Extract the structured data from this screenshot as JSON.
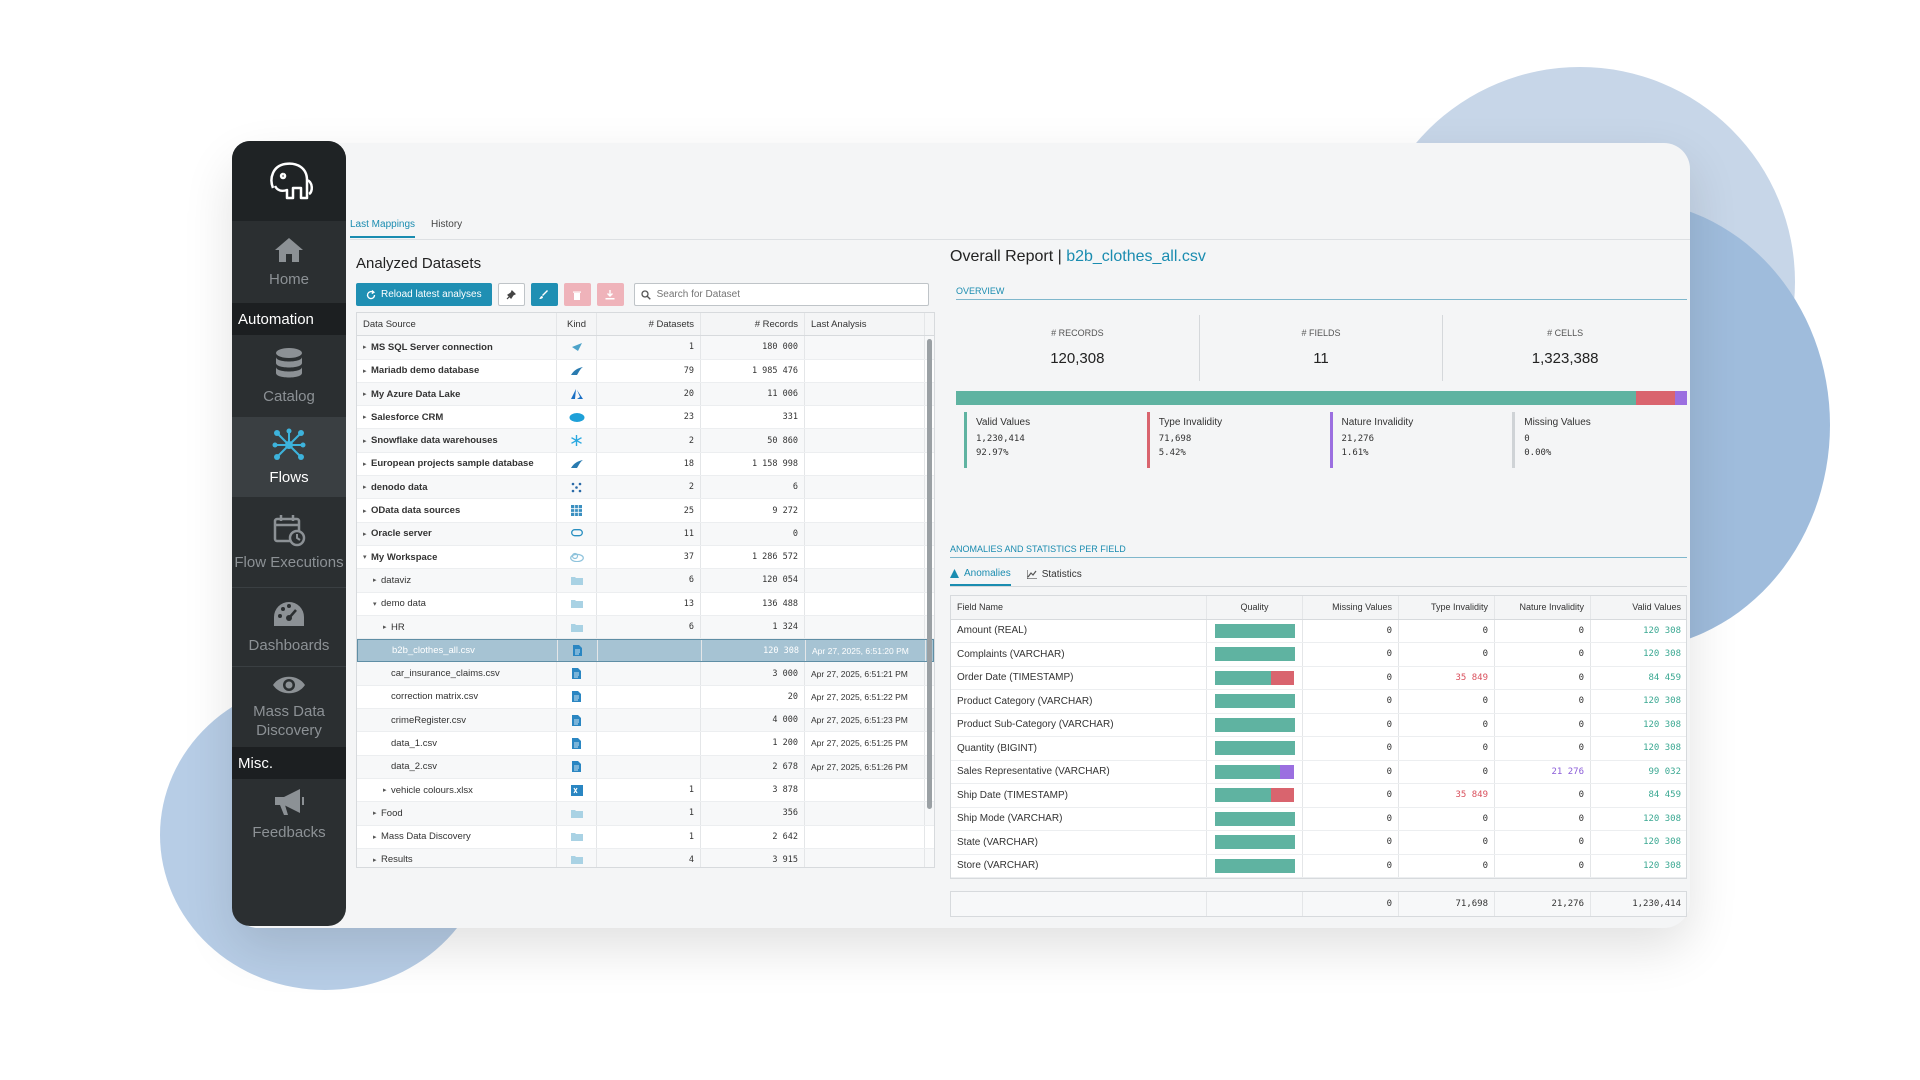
{
  "colors": {
    "accent": "#1a8cb0",
    "valid": "#5fb3a1",
    "type_invalid": "#d9646e",
    "nature_invalid": "#9b6fe0",
    "missing": "#cfd3d6",
    "sidebar_bg": "#2b2f31"
  },
  "sidebar": {
    "logo": "elephant-logo",
    "items": [
      {
        "label": "Home",
        "icon": "home-icon"
      },
      {
        "label": "Catalog",
        "icon": "database-icon"
      },
      {
        "label": "Flows",
        "icon": "flows-icon"
      },
      {
        "label": "Flow Executions",
        "icon": "calendar-clock-icon"
      },
      {
        "label": "Dashboards",
        "icon": "gauge-icon"
      },
      {
        "label": "Mass Data Discovery",
        "icon": "eye-icon"
      },
      {
        "label": "Feedbacks",
        "icon": "megaphone-icon"
      }
    ],
    "sections": {
      "automation": "Automation",
      "misc": "Misc."
    }
  },
  "top_tabs": [
    {
      "label": "Last Mappings"
    },
    {
      "label": "History"
    }
  ],
  "left": {
    "title": "Analyzed Datasets",
    "reload_label": "Reload latest analyses",
    "search_placeholder": "Search for Dataset",
    "columns": [
      "Data Source",
      "Kind",
      "# Datasets",
      "# Records",
      "Last Analysis"
    ],
    "rows": [
      {
        "name": "MS SQL Server connection",
        "datasets": "1",
        "records": "180 000",
        "last": ""
      },
      {
        "name": "Mariadb demo database",
        "datasets": "79",
        "records": "1 985 476",
        "last": ""
      },
      {
        "name": "My Azure Data Lake",
        "datasets": "20",
        "records": "11 006",
        "last": ""
      },
      {
        "name": "Salesforce CRM",
        "datasets": "23",
        "records": "331",
        "last": ""
      },
      {
        "name": "Snowflake data warehouses",
        "datasets": "2",
        "records": "50 860",
        "last": ""
      },
      {
        "name": "European projects sample database",
        "datasets": "18",
        "records": "1 158 998",
        "last": ""
      },
      {
        "name": "denodo data",
        "datasets": "2",
        "records": "6",
        "last": ""
      },
      {
        "name": "OData data sources",
        "datasets": "25",
        "records": "9 272",
        "last": ""
      },
      {
        "name": "Oracle server",
        "datasets": "11",
        "records": "0",
        "last": ""
      },
      {
        "name": "My Workspace",
        "datasets": "37",
        "records": "1 286 572",
        "last": ""
      },
      {
        "name": "dataviz",
        "datasets": "6",
        "records": "120 054",
        "last": ""
      },
      {
        "name": "demo data",
        "datasets": "13",
        "records": "136 488",
        "last": ""
      },
      {
        "name": "HR",
        "datasets": "6",
        "records": "1 324",
        "last": ""
      },
      {
        "name": "b2b_clothes_all.csv",
        "datasets": "",
        "records": "120 308",
        "last": "Apr 27, 2025, 6:51:20 PM"
      },
      {
        "name": "car_insurance_claims.csv",
        "datasets": "",
        "records": "3 000",
        "last": "Apr 27, 2025, 6:51:21 PM"
      },
      {
        "name": "correction matrix.csv",
        "datasets": "",
        "records": "20",
        "last": "Apr 27, 2025, 6:51:22 PM"
      },
      {
        "name": "crimeRegister.csv",
        "datasets": "",
        "records": "4 000",
        "last": "Apr 27, 2025, 6:51:23 PM"
      },
      {
        "name": "data_1.csv",
        "datasets": "",
        "records": "1 200",
        "last": "Apr 27, 2025, 6:51:25 PM"
      },
      {
        "name": "data_2.csv",
        "datasets": "",
        "records": "2 678",
        "last": "Apr 27, 2025, 6:51:26 PM"
      },
      {
        "name": "vehicle colours.xlsx",
        "datasets": "1",
        "records": "3 878",
        "last": ""
      },
      {
        "name": "Food",
        "datasets": "1",
        "records": "356",
        "last": ""
      },
      {
        "name": "Mass Data Discovery",
        "datasets": "1",
        "records": "2 642",
        "last": ""
      },
      {
        "name": "Results",
        "datasets": "4",
        "records": "3 915",
        "last": ""
      }
    ]
  },
  "report": {
    "title_prefix": "Overall Report |",
    "file": "b2b_clothes_all.csv",
    "overview_label": "OVERVIEW",
    "kpis": [
      {
        "label": "# RECORDS",
        "value": "120,308"
      },
      {
        "label": "# FIELDS",
        "value": "11"
      },
      {
        "label": "# CELLS",
        "value": "1,323,388"
      }
    ],
    "quality": {
      "valid": 0.9297,
      "type_invalid": 0.0542,
      "nature_invalid": 0.0161,
      "missing": 0.0
    },
    "legend": [
      {
        "name": "Valid Values",
        "count": "1,230,414",
        "pct": "92.97%"
      },
      {
        "name": "Type Invalidity",
        "count": "71,698",
        "pct": "5.42%"
      },
      {
        "name": "Nature Invalidity",
        "count": "21,276",
        "pct": "1.61%"
      },
      {
        "name": "Missing Values",
        "count": "0",
        "pct": "0.00%"
      }
    ],
    "anomalies_label": "ANOMALIES AND STATISTICS PER FIELD",
    "subtabs": [
      "Anomalies",
      "Statistics"
    ],
    "columns": [
      "Field Name",
      "Quality",
      "Missing Values",
      "Type Invalidity",
      "Nature Invalidity",
      "Valid Values"
    ],
    "fields": [
      {
        "name": "Amount (REAL)",
        "missing": "0",
        "type": "0",
        "nature": "0",
        "valid": "120 308",
        "q": [
          1,
          0,
          0
        ]
      },
      {
        "name": "Complaints (VARCHAR)",
        "missing": "0",
        "type": "0",
        "nature": "0",
        "valid": "120 308",
        "q": [
          1,
          0,
          0
        ]
      },
      {
        "name": "Order Date (TIMESTAMP)",
        "missing": "0",
        "type": "35 849",
        "nature": "0",
        "valid": "84 459",
        "q": [
          0.702,
          0.298,
          0
        ]
      },
      {
        "name": "Product Category (VARCHAR)",
        "missing": "0",
        "type": "0",
        "nature": "0",
        "valid": "120 308",
        "q": [
          1,
          0,
          0
        ]
      },
      {
        "name": "Product Sub-Category (VARCHAR)",
        "missing": "0",
        "type": "0",
        "nature": "0",
        "valid": "120 308",
        "q": [
          1,
          0,
          0
        ]
      },
      {
        "name": "Quantity (BIGINT)",
        "missing": "0",
        "type": "0",
        "nature": "0",
        "valid": "120 308",
        "q": [
          1,
          0,
          0
        ]
      },
      {
        "name": "Sales Representative (VARCHAR)",
        "missing": "0",
        "type": "0",
        "nature": "21 276",
        "valid": "99 032",
        "q": [
          0.823,
          0,
          0.177
        ]
      },
      {
        "name": "Ship Date (TIMESTAMP)",
        "missing": "0",
        "type": "35 849",
        "nature": "0",
        "valid": "84 459",
        "q": [
          0.702,
          0.298,
          0
        ]
      },
      {
        "name": "Ship Mode (VARCHAR)",
        "missing": "0",
        "type": "0",
        "nature": "0",
        "valid": "120 308",
        "q": [
          1,
          0,
          0
        ]
      },
      {
        "name": "State (VARCHAR)",
        "missing": "0",
        "type": "0",
        "nature": "0",
        "valid": "120 308",
        "q": [
          1,
          0,
          0
        ]
      },
      {
        "name": "Store (VARCHAR)",
        "missing": "0",
        "type": "0",
        "nature": "0",
        "valid": "120 308",
        "q": [
          1,
          0,
          0
        ]
      }
    ],
    "totals": {
      "missing": "0",
      "type": "71,698",
      "nature": "21,276",
      "valid": "1,230,414"
    }
  }
}
